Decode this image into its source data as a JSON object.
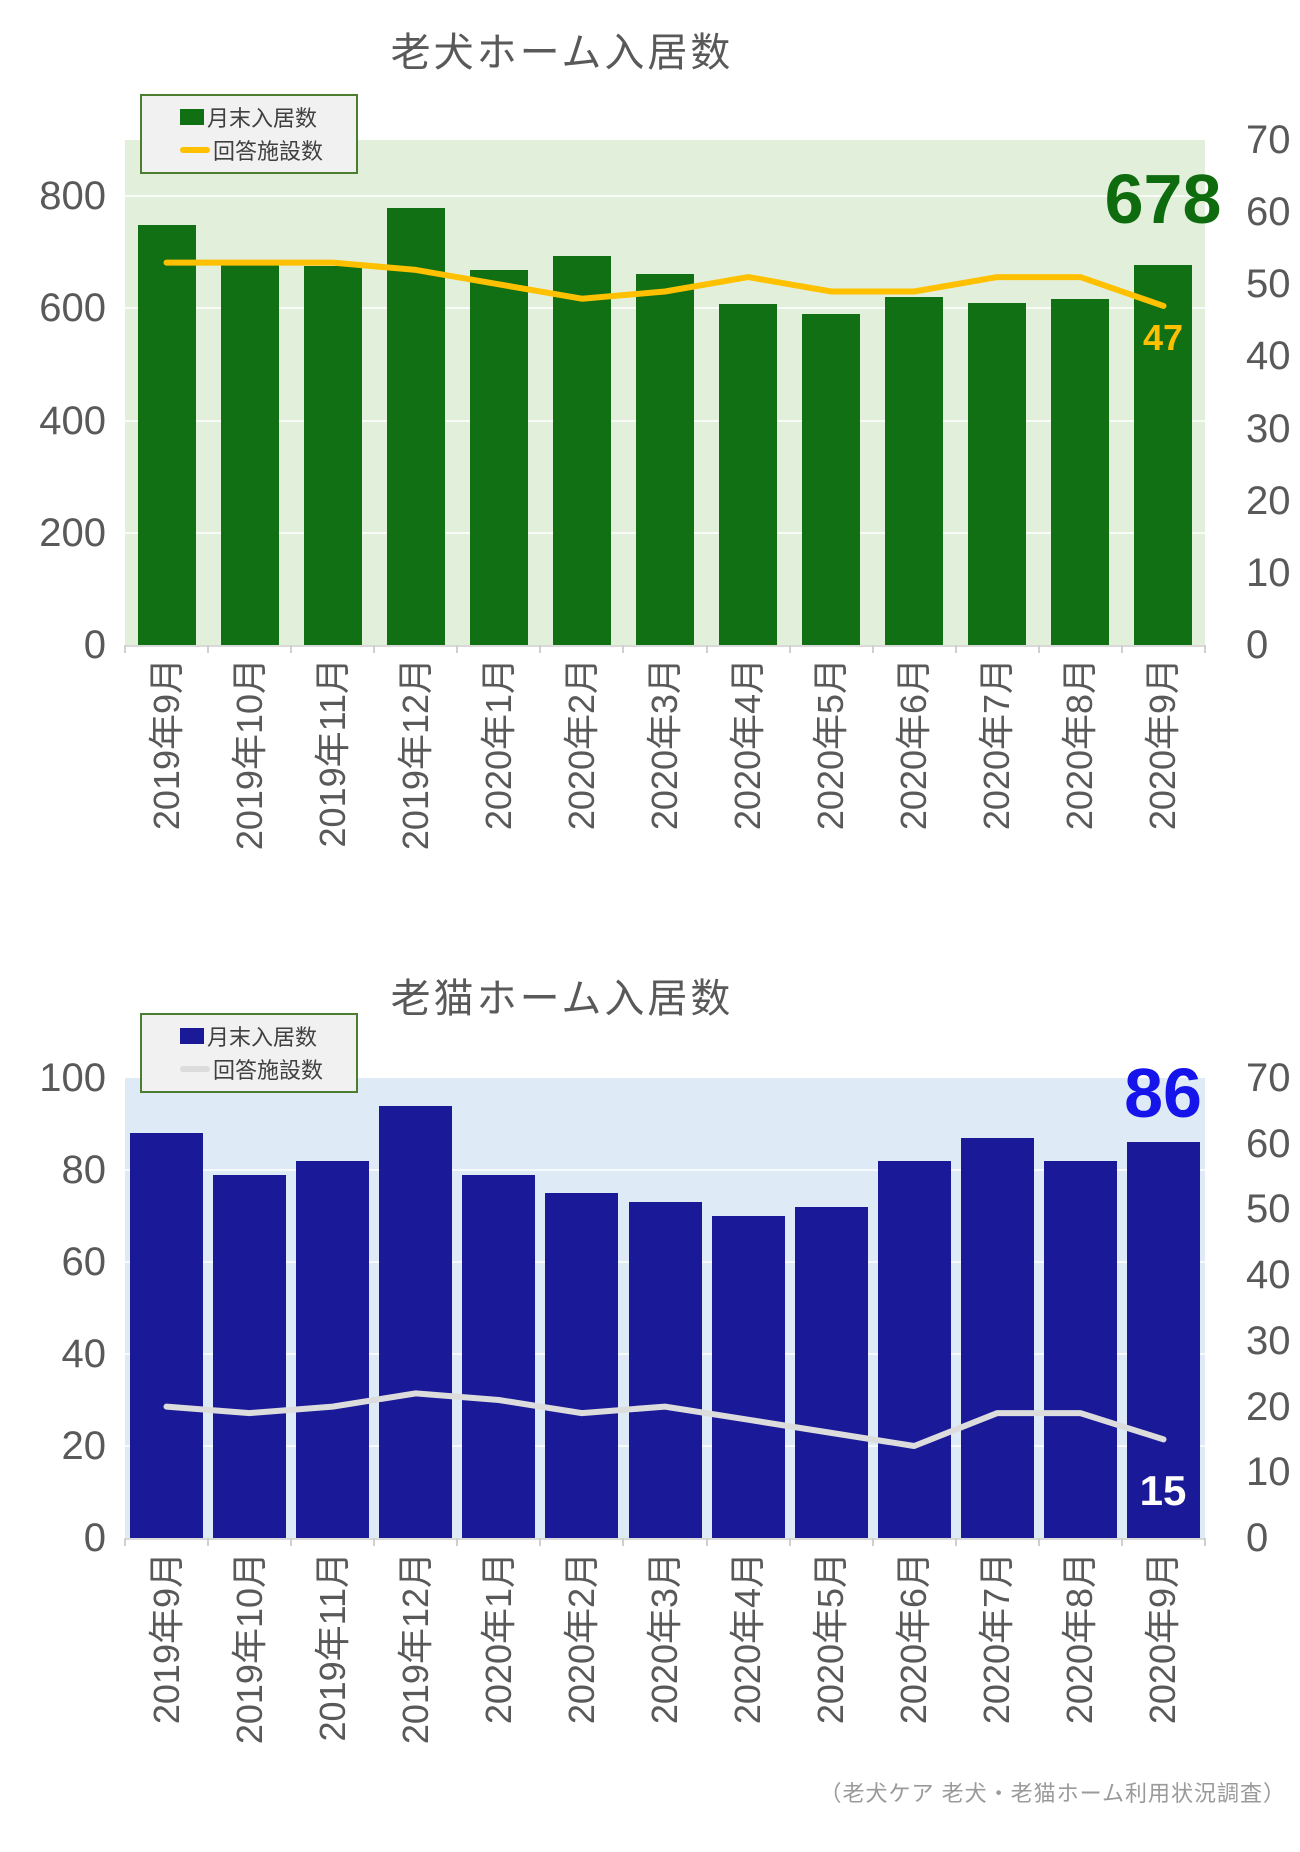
{
  "footer": "（老犬ケア 老犬・老猫ホーム利用状況調査）",
  "charts": [
    {
      "title": "老犬ホーム入居数",
      "legend": [
        {
          "label": "月末入居数",
          "marker": "square",
          "color": "#116F14"
        },
        {
          "label": "回答施設数",
          "marker": "line",
          "color": "#FFC000"
        }
      ],
      "chart_data": {
        "type": "bar+line",
        "title": "老犬ホーム入居数",
        "categories": [
          "2019年9月",
          "2019年10月",
          "2019年11月",
          "2019年12月",
          "2020年1月",
          "2020年2月",
          "2020年3月",
          "2020年4月",
          "2020年5月",
          "2020年6月",
          "2020年7月",
          "2020年8月",
          "2020年9月"
        ],
        "series": [
          {
            "name": "月末入居数",
            "type": "bar",
            "axis": "left",
            "color": "#116F14",
            "values": [
              748,
              677,
              675,
              778,
              668,
              694,
              661,
              608,
              590,
              621,
              610,
              617,
              678
            ]
          },
          {
            "name": "回答施設数",
            "type": "line",
            "axis": "right",
            "color": "#FFC000",
            "values": [
              53,
              53,
              53,
              52,
              50,
              48,
              49,
              51,
              49,
              49,
              51,
              51,
              47
            ]
          }
        ],
        "left_axis": {
          "ticks": [
            0,
            200,
            400,
            600,
            800
          ],
          "range": [
            0,
            900
          ]
        },
        "right_axis": {
          "ticks": [
            0,
            10,
            20,
            30,
            40,
            50,
            60,
            70
          ],
          "range": [
            0,
            70
          ]
        },
        "plot_bg": "#E2EFDA",
        "grid": true,
        "legend_position": "top-left",
        "annotations": [
          {
            "series": "月末入居数",
            "point": "2020年9月",
            "text": "678",
            "color": "#0E6B0E"
          },
          {
            "series": "回答施設数",
            "point": "2020年9月",
            "text": "47",
            "color": "#FFC000"
          }
        ]
      }
    },
    {
      "title": "老猫ホーム入居数",
      "legend": [
        {
          "label": "月末入居数",
          "marker": "square",
          "color": "#1A1A99"
        },
        {
          "label": "回答施設数",
          "marker": "line",
          "color": "#DCDCDC"
        }
      ],
      "chart_data": {
        "type": "bar+line",
        "title": "老猫ホーム入居数",
        "categories": [
          "2019年9月",
          "2019年10月",
          "2019年11月",
          "2019年12月",
          "2020年1月",
          "2020年2月",
          "2020年3月",
          "2020年4月",
          "2020年5月",
          "2020年6月",
          "2020年7月",
          "2020年8月",
          "2020年9月"
        ],
        "series": [
          {
            "name": "月末入居数",
            "type": "bar",
            "axis": "left",
            "color": "#1A1A99",
            "values": [
              88,
              79,
              82,
              94,
              79,
              75,
              73,
              70,
              72,
              82,
              87,
              82,
              86
            ]
          },
          {
            "name": "回答施設数",
            "type": "line",
            "axis": "right",
            "color": "#DCDCDC",
            "values": [
              20,
              19,
              20,
              22,
              21,
              19,
              20,
              18,
              16,
              14,
              19,
              19,
              15
            ]
          }
        ],
        "left_axis": {
          "ticks": [
            0,
            20,
            40,
            60,
            80,
            100
          ],
          "range": [
            0,
            100
          ]
        },
        "right_axis": {
          "ticks": [
            0,
            10,
            20,
            30,
            40,
            50,
            60,
            70
          ],
          "range": [
            0,
            70
          ]
        },
        "plot_bg": "#DEEBF6",
        "grid": true,
        "legend_position": "top-left",
        "annotations": [
          {
            "series": "月末入居数",
            "point": "2020年9月",
            "text": "86",
            "color": "#1414EB"
          },
          {
            "series": "回答施設数",
            "point": "2020年9月",
            "text": "15",
            "color": "#FFFFFF"
          }
        ]
      }
    }
  ]
}
